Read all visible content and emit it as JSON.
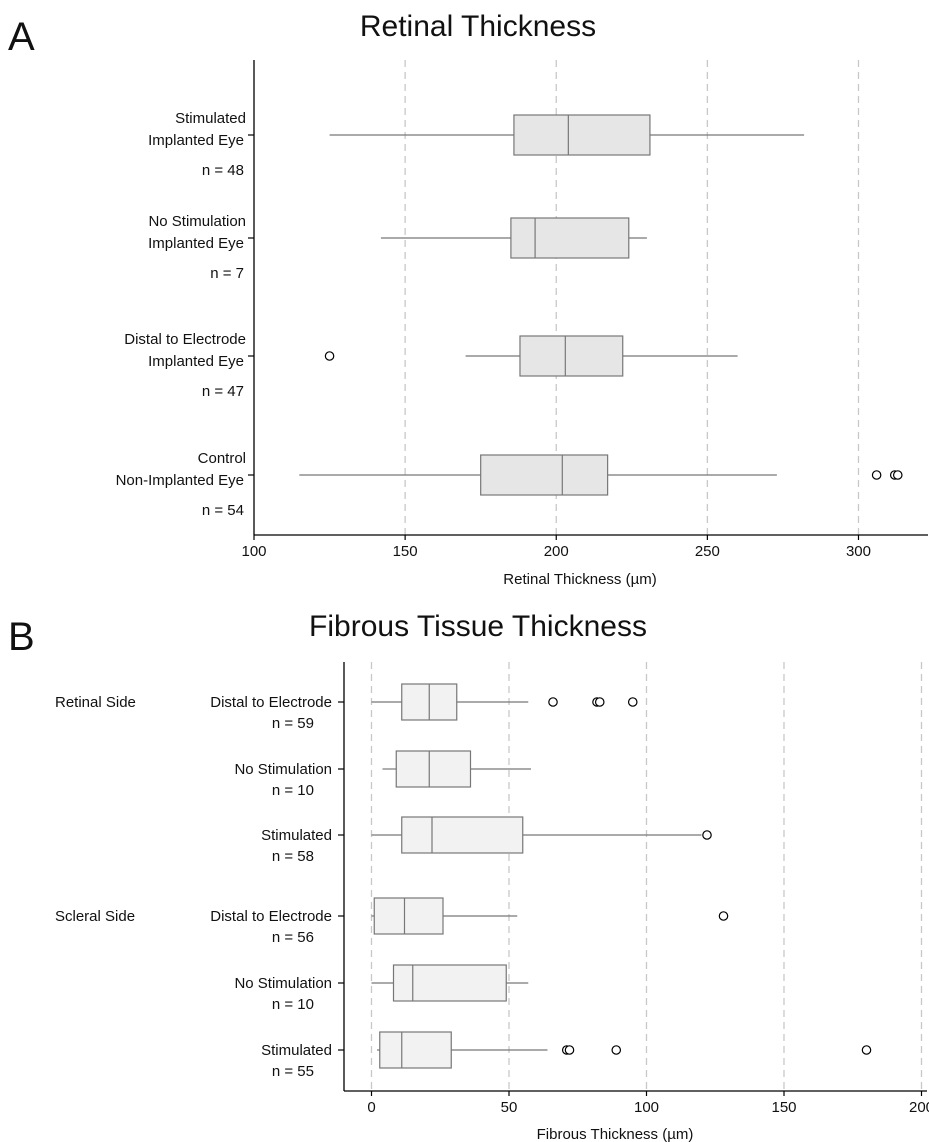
{
  "chart_data": [
    {
      "type": "box",
      "panel_letter": "A",
      "title": "Retinal Thickness",
      "xlabel": "Retinal Thickness (µm)",
      "ylabel": "",
      "xlim": [
        100,
        323
      ],
      "xticks": [
        100,
        150,
        200,
        250,
        300
      ],
      "grid": "vertical dashed",
      "box_fill": "#e6e6e6",
      "categories": [
        {
          "lines": [
            "Stimulated",
            "Implanted Eye"
          ],
          "n_label": "n = 48",
          "whisker_low": 125,
          "q1": 186,
          "median": 204,
          "q3": 231,
          "whisker_high": 282,
          "outliers": []
        },
        {
          "lines": [
            "No Stimulation",
            "Implanted Eye"
          ],
          "n_label": "n = 7",
          "whisker_low": 142,
          "q1": 185,
          "median": 193,
          "q3": 224,
          "whisker_high": 230,
          "outliers": []
        },
        {
          "lines": [
            "Distal to Electrode",
            "Implanted Eye"
          ],
          "n_label": "n = 47",
          "whisker_low": 170,
          "q1": 188,
          "median": 203,
          "q3": 222,
          "whisker_high": 260,
          "outliers": [
            125
          ]
        },
        {
          "lines": [
            "Control",
            "Non-Implanted Eye"
          ],
          "n_label": "n = 54",
          "whisker_low": 115,
          "q1": 175,
          "median": 202,
          "q3": 217,
          "whisker_high": 273,
          "outliers": [
            306,
            312,
            313
          ]
        }
      ]
    },
    {
      "type": "box",
      "panel_letter": "B",
      "title": "Fibrous Tissue Thickness",
      "xlabel": "Fibrous Thickness  (µm)",
      "ylabel": "",
      "xlim": [
        -10,
        202
      ],
      "xticks": [
        0,
        50,
        100,
        150,
        200
      ],
      "grid": "vertical dashed",
      "box_fill": "#f2f2f2",
      "groups": [
        "Retinal Side",
        "Scleral Side"
      ],
      "categories": [
        {
          "group_label": "Retinal Side",
          "label": "Distal to Electrode",
          "n_label": "n = 59",
          "whisker_low": 0,
          "q1": 11,
          "median": 21,
          "q3": 31,
          "whisker_high": 57,
          "outliers": [
            66,
            82,
            83,
            95
          ]
        },
        {
          "group_label": "",
          "label": "No Stimulation",
          "n_label": "n = 10",
          "whisker_low": 4,
          "q1": 9,
          "median": 21,
          "q3": 36,
          "whisker_high": 58,
          "outliers": []
        },
        {
          "group_label": "",
          "label": "Stimulated",
          "n_label": "n = 58",
          "whisker_low": 0,
          "q1": 11,
          "median": 22,
          "q3": 55,
          "whisker_high": 120,
          "outliers": [
            122
          ]
        },
        {
          "group_label": "Scleral Side",
          "label": "Distal to Electrode",
          "n_label": "n = 56",
          "whisker_low": 0,
          "q1": 1,
          "median": 12,
          "q3": 26,
          "whisker_high": 53,
          "outliers": [
            128
          ]
        },
        {
          "group_label": "",
          "label": "No Stimulation",
          "n_label": "n = 10",
          "whisker_low": 0,
          "q1": 8,
          "median": 15,
          "q3": 49,
          "whisker_high": 57,
          "outliers": []
        },
        {
          "group_label": "",
          "label": "Stimulated",
          "n_label": "n = 55",
          "whisker_low": 2,
          "q1": 3,
          "median": 11,
          "q3": 29,
          "whisker_high": 64,
          "outliers": [
            71,
            72,
            89,
            180
          ]
        }
      ]
    }
  ]
}
